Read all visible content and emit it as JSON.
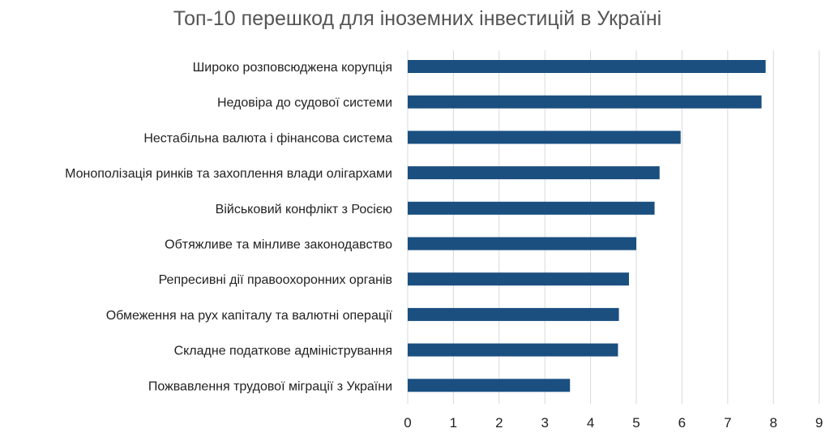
{
  "chart_data": {
    "type": "bar",
    "orientation": "horizontal",
    "title": "Топ-10 перешкод для іноземних інвестицій в Україні",
    "categories": [
      "Широко розповсюджена корупція",
      "Недовіра до судової системи",
      "Нестабільна валюта і фінансова система",
      "Монополізація ринків та захоплення влади олігархами",
      "Військовий конфлікт з Росією",
      "Обтяжливе та мінливе законодавство",
      "Репресивні дії правоохоронних органів",
      "Обмеження на рух капіталу та валютні операції",
      "Складне податкове адміністрування",
      "Пожвавлення трудової міграції з України"
    ],
    "values": [
      7.83,
      7.74,
      5.97,
      5.51,
      5.4,
      5.0,
      4.84,
      4.62,
      4.6,
      3.55
    ],
    "xlim": [
      0,
      9
    ],
    "ticks": [
      "0",
      "1",
      "2",
      "3",
      "4",
      "5",
      "6",
      "7",
      "8",
      "9"
    ],
    "grid": true,
    "legend": "none",
    "colors": {
      "bar": "#1a4f80",
      "grid": "#d9d9d9",
      "title": "#555555",
      "text": "#222222"
    }
  }
}
